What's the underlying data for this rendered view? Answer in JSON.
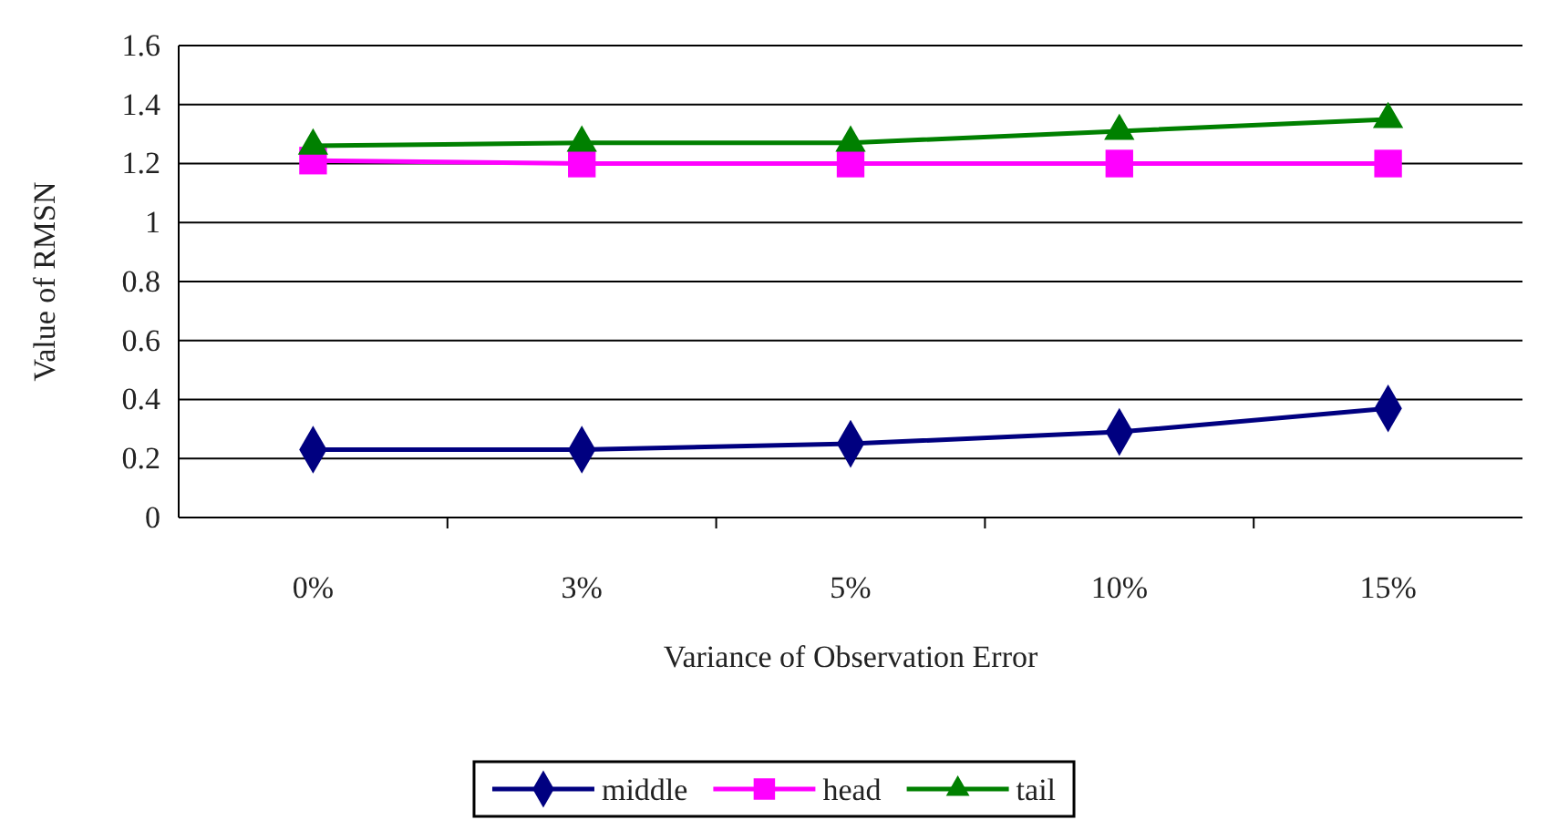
{
  "chart_data": {
    "type": "line",
    "xlabel": "Variance of Observation Error",
    "ylabel": "Value of RMSN",
    "categories": [
      "0%",
      "3%",
      "5%",
      "10%",
      "15%"
    ],
    "series": [
      {
        "name": "middle",
        "color": "#000080",
        "marker": "diamond",
        "values": [
          0.23,
          0.23,
          0.25,
          0.29,
          0.37
        ]
      },
      {
        "name": "head",
        "color": "#ff00ff",
        "marker": "square",
        "values": [
          1.21,
          1.2,
          1.2,
          1.2,
          1.2
        ]
      },
      {
        "name": "tail",
        "color": "#008000",
        "marker": "triangle",
        "values": [
          1.26,
          1.27,
          1.27,
          1.31,
          1.35
        ]
      }
    ],
    "ylim": [
      0,
      1.6
    ],
    "yticks": [
      0,
      0.2,
      0.4,
      0.6,
      0.8,
      1,
      1.2,
      1.4,
      1.6
    ],
    "grid": "y",
    "legend": "bottom"
  }
}
